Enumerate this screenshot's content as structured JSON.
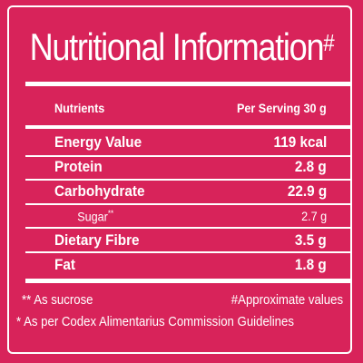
{
  "title": "Nutritional Information",
  "title_mark": "#",
  "header": {
    "nutrients": "Nutrients",
    "per_serving": "Per Serving 30 g"
  },
  "rows": [
    {
      "name": "Energy Value",
      "value": "119 kcal"
    },
    {
      "name": "Protein",
      "value": "2.8 g"
    },
    {
      "name": "Carbohydrate",
      "value": "22.9 g"
    },
    {
      "name": "Sugar",
      "name_mark": "**",
      "value": "2.7 g"
    },
    {
      "name": "Dietary Fibre",
      "value": "3.5 g"
    },
    {
      "name": "Fat",
      "value": "1.8 g"
    }
  ],
  "footnotes": {
    "sucrose": "** As sucrose",
    "approx": "#Approximate values",
    "codex": "* As per Codex Alimentarius Commission Guidelines"
  },
  "colors": {
    "background": "#d8235a",
    "foreground": "#ffffff"
  }
}
